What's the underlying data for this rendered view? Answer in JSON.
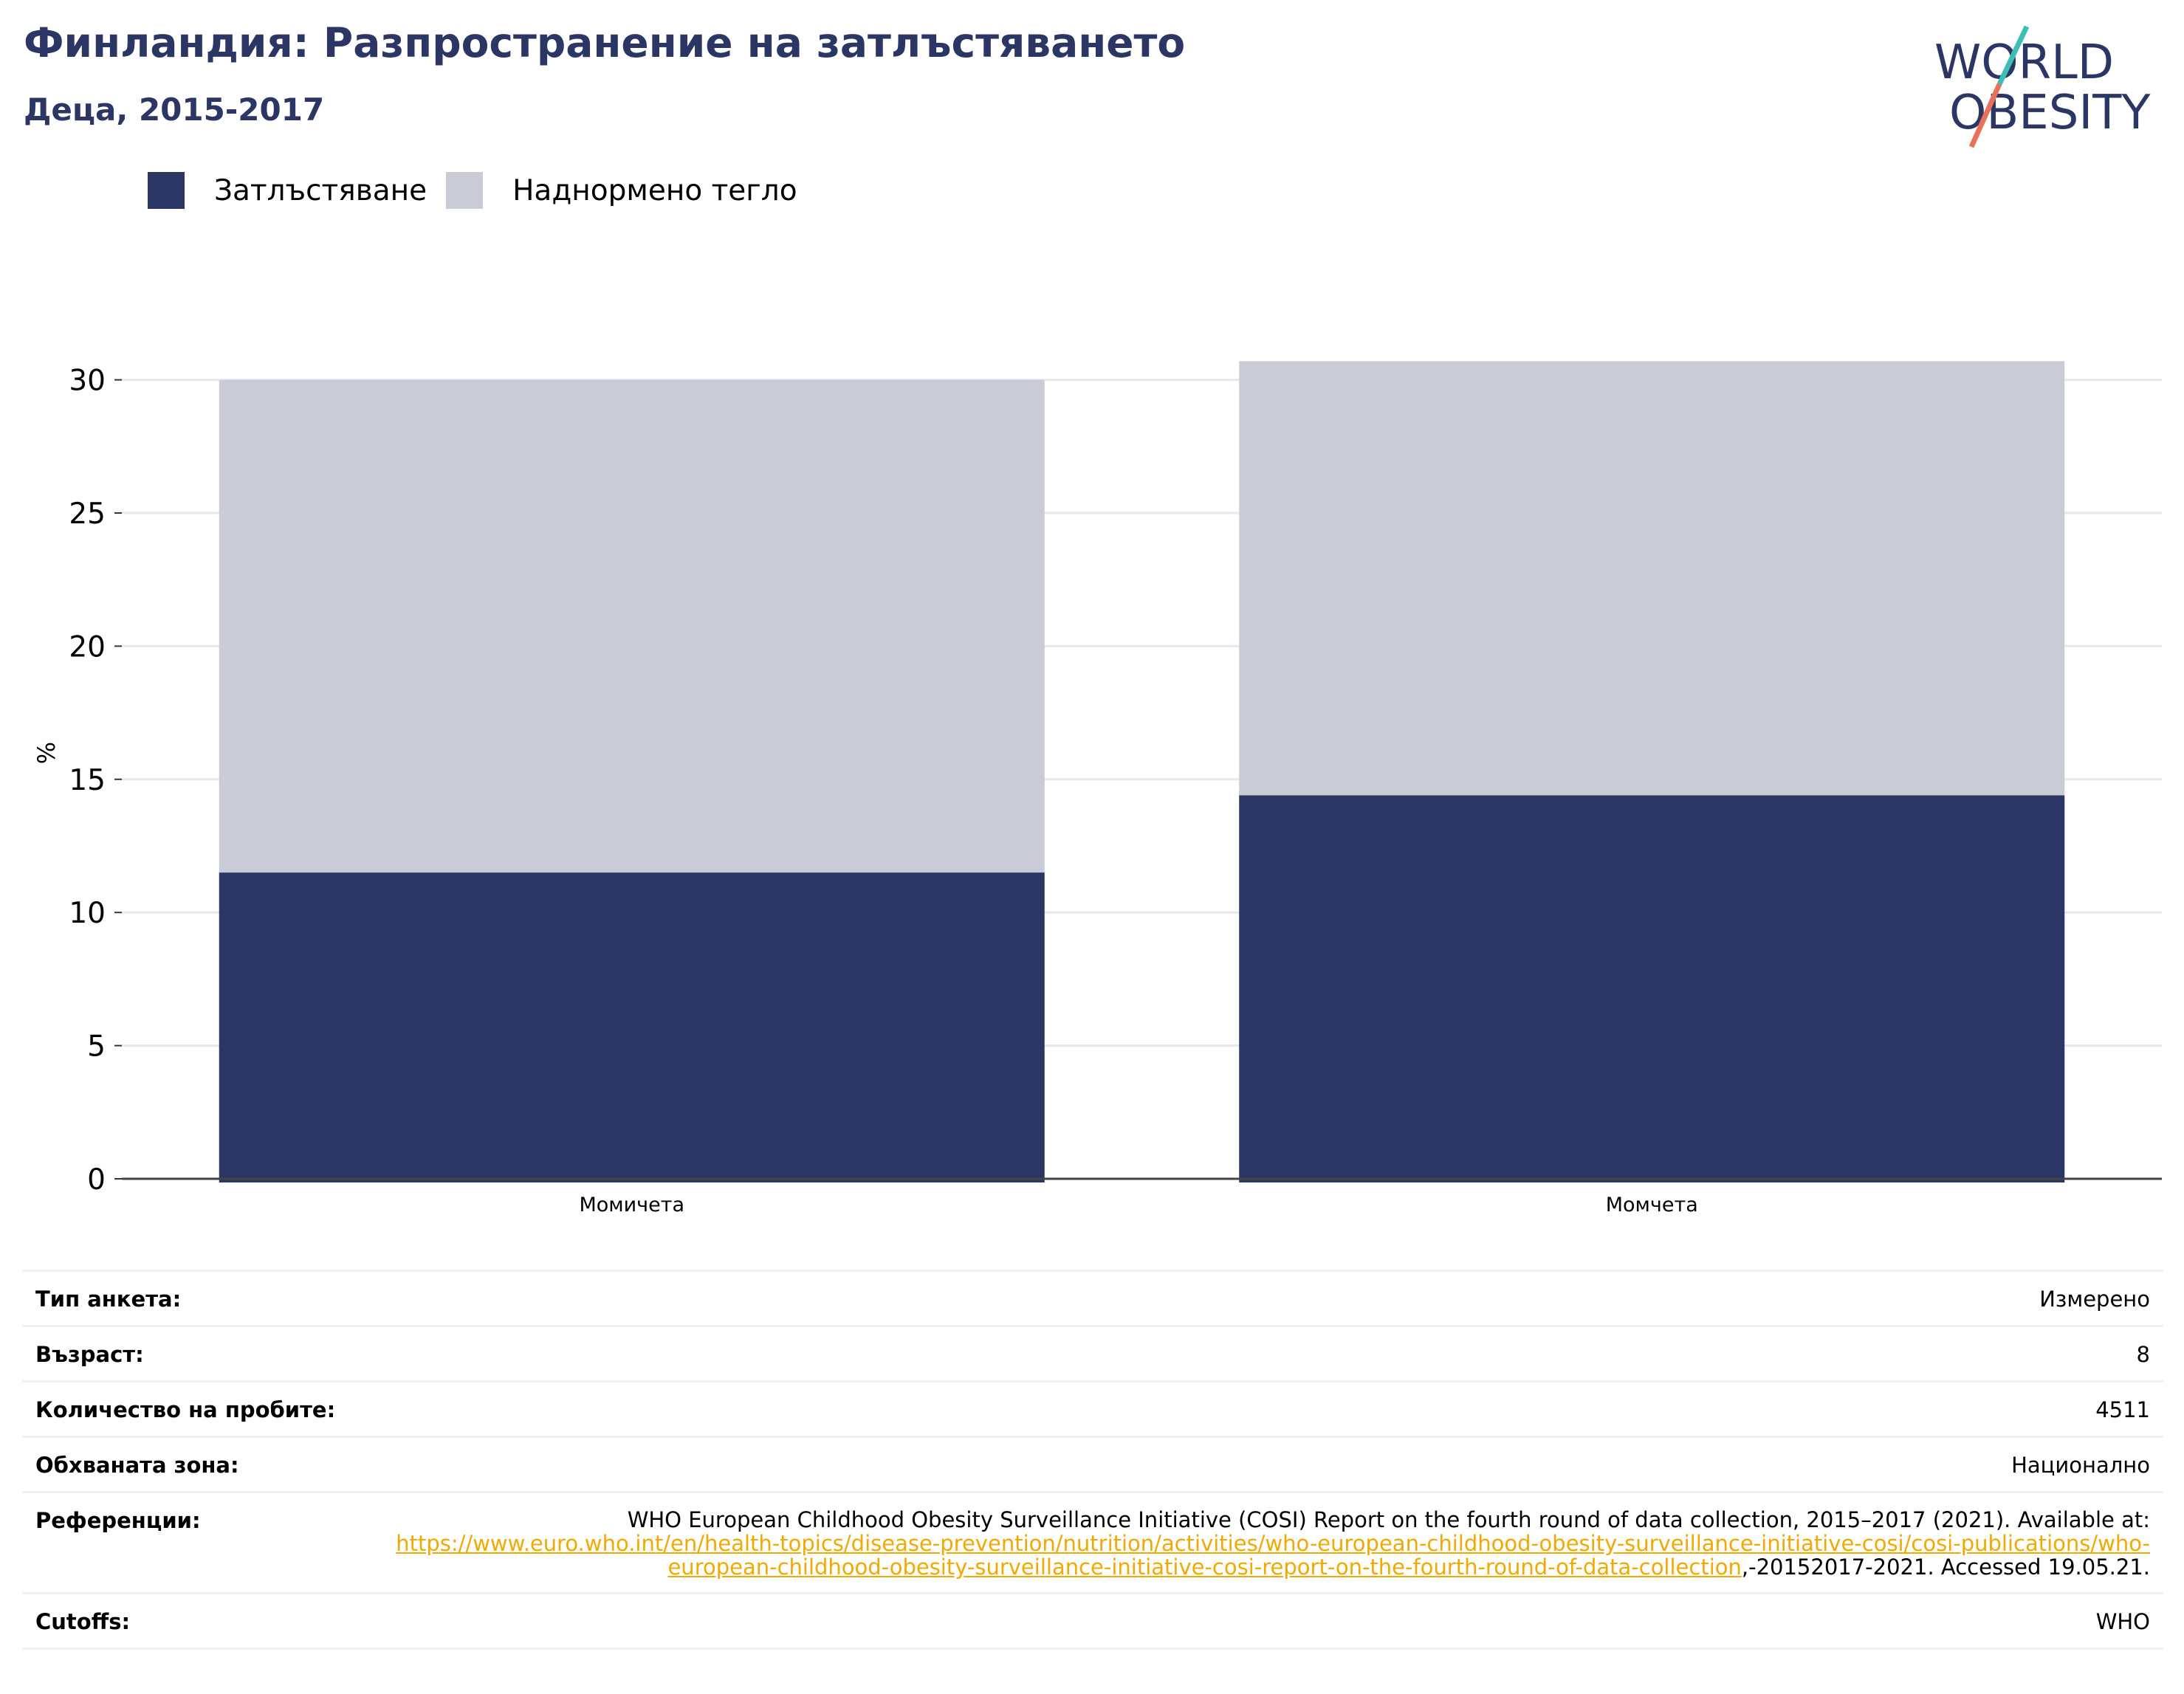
{
  "header": {
    "title": "Финландия: Разпространение на затлъстяването",
    "subtitle": "Деца, 2015-2017"
  },
  "logo": {
    "line1": "WORLD",
    "line2": "OBESITY",
    "colors": {
      "text": "#2b3664",
      "slash_teal": "#3dbdb6",
      "slash_coral": "#e8715a"
    }
  },
  "colors": {
    "obesity": "#2b3664",
    "overweight": "#c9cbd7",
    "title": "#2b3664",
    "link": "#f2a900"
  },
  "chart_data": {
    "type": "bar",
    "stacked": true,
    "categories": [
      "Момичета",
      "Момчета"
    ],
    "series": [
      {
        "name": "Затлъстяване",
        "values": [
          11.5,
          14.4
        ],
        "color": "#2b3664"
      },
      {
        "name": "Наднормено тегло",
        "values": [
          18.5,
          16.3
        ],
        "color": "#c9cbd7"
      }
    ],
    "ylabel": "%",
    "ylim": [
      0,
      31
    ],
    "yticks": [
      0,
      5,
      10,
      15,
      20,
      25,
      30
    ],
    "grid": true,
    "legend_position": "top-left"
  },
  "info": {
    "rows": [
      {
        "label": "Тип анкета:",
        "value": "Измерено"
      },
      {
        "label": "Възраст:",
        "value": "8"
      },
      {
        "label": "Количество на пробите:",
        "value": "4511"
      },
      {
        "label": "Обхваната зона:",
        "value": "Национално"
      }
    ],
    "reference": {
      "label": "Референции:",
      "text_before": "WHO European Childhood Obesity Surveillance Initiative (COSI) Report on the fourth round of data collection, 2015–2017 (2021). Available at:",
      "link": "https://www.euro.who.int/en/health-topics/disease-prevention/nutrition/activities/who-european-childhood-obesity-surveillance-initiative-cosi/cosi-publications/who-european-childhood-obesity-surveillance-initiative-cosi-report-on-the-fourth-round-of-data-collection",
      "text_after": ",-20152017-2021. Accessed 19.05.21."
    },
    "cutoffs": {
      "label": "Cutoffs:",
      "value": "WHO"
    }
  }
}
